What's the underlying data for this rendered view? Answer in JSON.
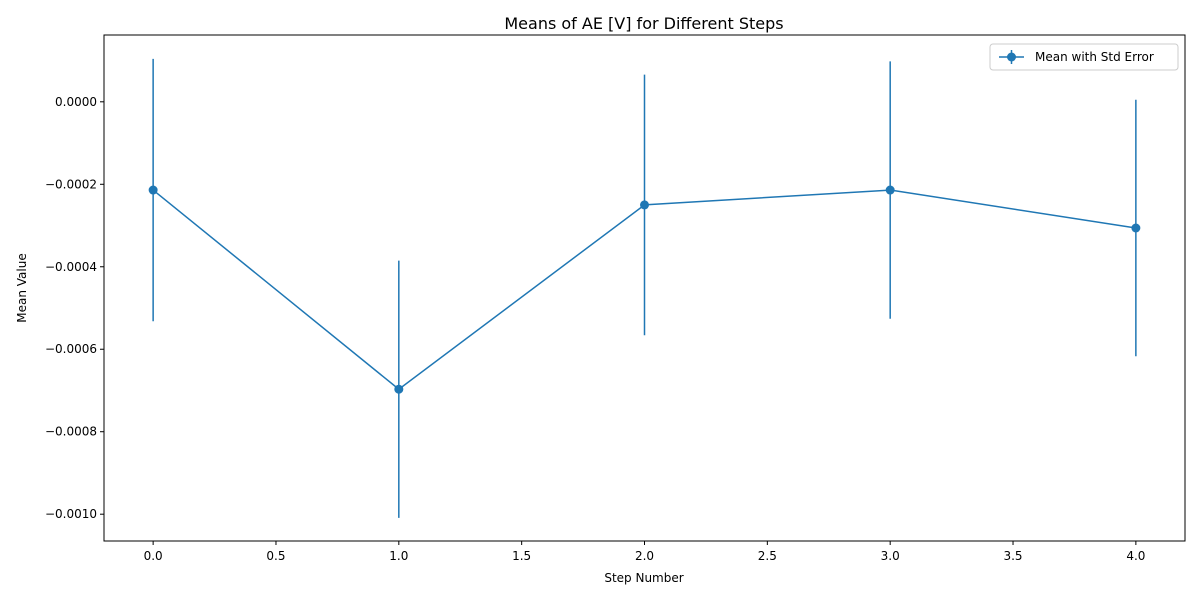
{
  "chart_data": {
    "type": "line",
    "title": "Means of AE [V] for Different Steps",
    "xlabel": "Step Number",
    "ylabel": "Mean Value",
    "x": [
      0,
      1,
      2,
      3,
      4
    ],
    "series": [
      {
        "name": "Mean with Std Error",
        "values": [
          -0.000214,
          -0.000697,
          -0.00025,
          -0.000214,
          -0.000306
        ],
        "errors": [
          0.000318,
          0.000312,
          0.000316,
          0.000312,
          0.000311
        ],
        "color": "#1f77b4"
      }
    ],
    "xlim": [
      -0.2,
      4.2
    ],
    "ylim": [
      -0.001065,
      0.000162
    ],
    "xticks": [
      0.0,
      0.5,
      1.0,
      1.5,
      2.0,
      2.5,
      3.0,
      3.5,
      4.0
    ],
    "xtick_labels": [
      "0.0",
      "0.5",
      "1.0",
      "1.5",
      "2.0",
      "2.5",
      "3.0",
      "3.5",
      "4.0"
    ],
    "yticks": [
      0.0,
      -0.0002,
      -0.0004,
      -0.0006,
      -0.0008,
      -0.001
    ],
    "ytick_labels": [
      "0.0000",
      "−0.0002",
      "−0.0004",
      "−0.0006",
      "−0.0008",
      "−0.0010"
    ],
    "grid": false,
    "legend_position": "top-right"
  }
}
